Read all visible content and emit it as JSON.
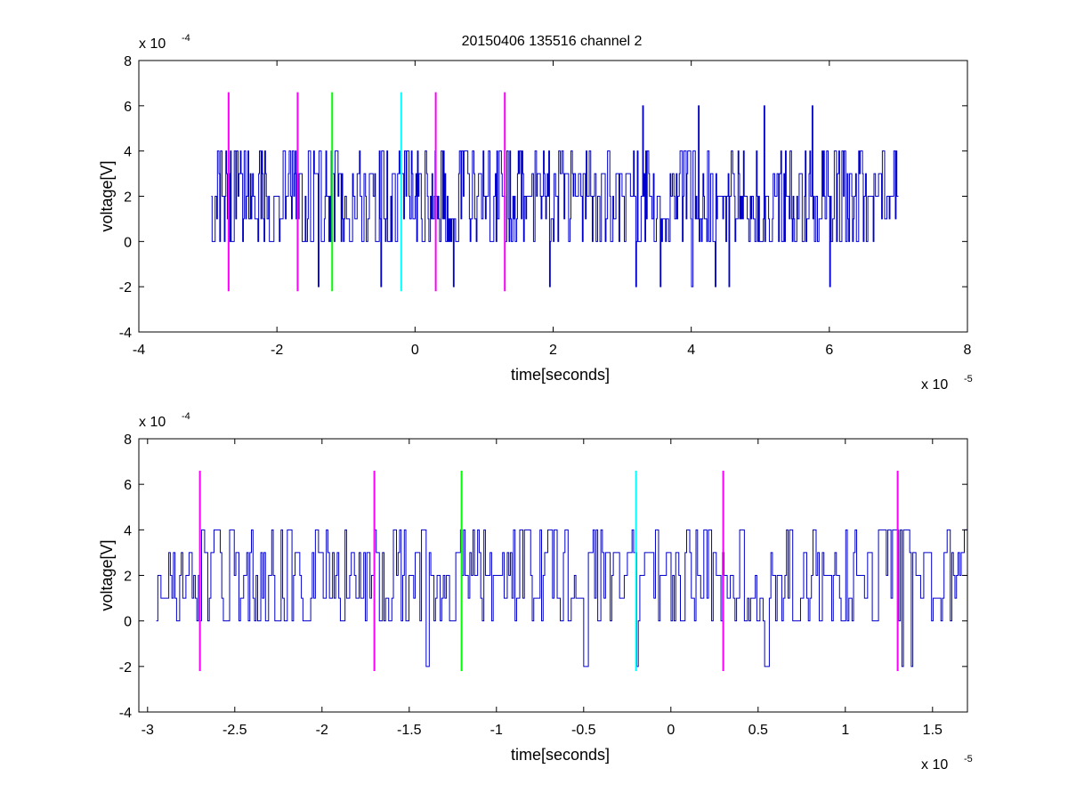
{
  "figure_title": "20150406 135516 channel 2",
  "chart_data": [
    {
      "type": "line",
      "title": "20150406 135516 channel 2",
      "xlabel": "time[seconds]",
      "ylabel": "voltage[V]",
      "x_exponent_label": "x 10",
      "x_exponent": "-5",
      "y_exponent_label": "x 10",
      "y_exponent": "-4",
      "xlim": [
        -4,
        8
      ],
      "ylim": [
        -4,
        8
      ],
      "xticks": [
        -4,
        -2,
        0,
        2,
        4,
        6,
        8
      ],
      "xtick_labels": [
        "-4",
        "-2",
        "0",
        "2",
        "4",
        "6",
        "8"
      ],
      "yticks": [
        -4,
        -2,
        0,
        2,
        4,
        6,
        8
      ],
      "ytick_labels": [
        "-4",
        "-2",
        "0",
        "2",
        "4",
        "6",
        "8"
      ],
      "grid": false,
      "series": [
        {
          "color": "#0000cc",
          "x_range": [
            -2.95,
            7.0
          ],
          "baseline": 2,
          "levels": [
            0,
            1,
            2,
            3,
            4
          ],
          "spikes": [
            {
              "x": -1.4,
              "y": -2
            },
            {
              "x": -0.5,
              "y": -2
            },
            {
              "x": 0.55,
              "y": -2
            },
            {
              "x": 1.95,
              "y": -2
            },
            {
              "x": 3.2,
              "y": -2
            },
            {
              "x": 3.55,
              "y": -2
            },
            {
              "x": 4.0,
              "y": -2
            },
            {
              "x": 4.35,
              "y": -2
            },
            {
              "x": 4.55,
              "y": -2
            },
            {
              "x": 6.0,
              "y": -2
            },
            {
              "x": 3.3,
              "y": 6
            },
            {
              "x": 4.1,
              "y": 6
            },
            {
              "x": 5.05,
              "y": 6
            },
            {
              "x": 5.75,
              "y": 6
            }
          ]
        }
      ],
      "vlines": [
        {
          "x": -2.7,
          "color": "#ff00ff",
          "ymin": -2.2,
          "ymax": 6.6
        },
        {
          "x": -1.7,
          "color": "#ff00ff",
          "ymin": -2.2,
          "ymax": 6.6
        },
        {
          "x": -1.2,
          "color": "#00ff00",
          "ymin": -2.2,
          "ymax": 6.6
        },
        {
          "x": -0.2,
          "color": "#00ffff",
          "ymin": -2.2,
          "ymax": 6.6
        },
        {
          "x": 0.3,
          "color": "#ff00ff",
          "ymin": -2.2,
          "ymax": 6.6
        },
        {
          "x": 1.3,
          "color": "#ff00ff",
          "ymin": -2.2,
          "ymax": 6.6
        }
      ]
    },
    {
      "type": "line",
      "xlabel": "time[seconds]",
      "ylabel": "voltage[V]",
      "x_exponent_label": "x 10",
      "x_exponent": "-5",
      "y_exponent_label": "x 10",
      "y_exponent": "-4",
      "xlim": [
        -3.05,
        1.7
      ],
      "ylim": [
        -4,
        8
      ],
      "xticks": [
        -3,
        -2.5,
        -2,
        -1.5,
        -1,
        -0.5,
        0,
        0.5,
        1,
        1.5
      ],
      "xtick_labels": [
        "-3",
        "-2.5",
        "-2",
        "-1.5",
        "-1",
        "-0.5",
        "0",
        "0.5",
        "1",
        "1.5"
      ],
      "yticks": [
        -4,
        -2,
        0,
        2,
        4,
        6,
        8
      ],
      "ytick_labels": [
        "-4",
        "-2",
        "0",
        "2",
        "4",
        "6",
        "8"
      ],
      "grid": false,
      "series": [
        {
          "color": "#0000cc",
          "x_range": [
            -2.95,
            1.7
          ],
          "baseline": 2,
          "levels": [
            0,
            1,
            2,
            3,
            4
          ],
          "spikes": [
            {
              "x": -1.4,
              "y": -2
            },
            {
              "x": -0.5,
              "y": -2
            },
            {
              "x": -0.48,
              "y": -2
            },
            {
              "x": -0.2,
              "y": -2
            },
            {
              "x": 0.54,
              "y": -2
            },
            {
              "x": 1.32,
              "y": -2
            },
            {
              "x": 1.38,
              "y": -2
            }
          ]
        }
      ],
      "vlines": [
        {
          "x": -2.7,
          "color": "#ff00ff",
          "ymin": -2.2,
          "ymax": 6.6
        },
        {
          "x": -1.7,
          "color": "#ff00ff",
          "ymin": -2.2,
          "ymax": 6.6
        },
        {
          "x": -1.2,
          "color": "#00ff00",
          "ymin": -2.2,
          "ymax": 6.6
        },
        {
          "x": -0.2,
          "color": "#00ffff",
          "ymin": -2.2,
          "ymax": 6.6
        },
        {
          "x": 0.3,
          "color": "#ff00ff",
          "ymin": -2.2,
          "ymax": 6.6
        },
        {
          "x": 1.3,
          "color": "#ff00ff",
          "ymin": -2.2,
          "ymax": 6.6
        }
      ]
    }
  ]
}
